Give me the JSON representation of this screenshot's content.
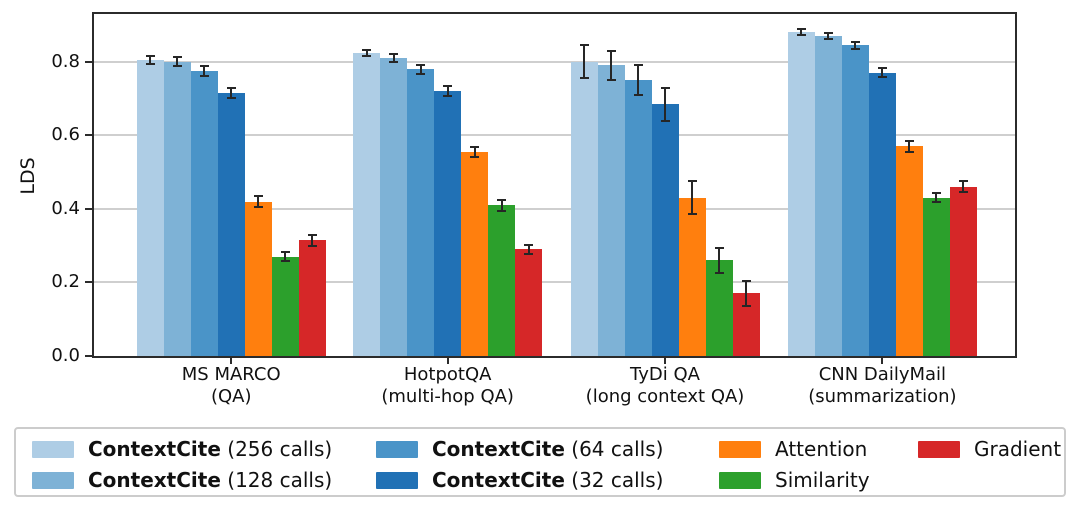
{
  "chart_data": {
    "type": "bar",
    "title": "",
    "ylabel": "LDS",
    "ylim": [
      0,
      0.93
    ],
    "yticks": [
      0.0,
      0.2,
      0.4,
      0.6,
      0.8
    ],
    "ytick_labels": [
      "0.0",
      "0.2",
      "0.4",
      "0.6",
      "0.8"
    ],
    "grid": "horizontal",
    "legend_position": "bottom",
    "categories": [
      {
        "line1": "MS MARCO",
        "line2": "(QA)"
      },
      {
        "line1": "HotpotQA",
        "line2": "(multi-hop QA)"
      },
      {
        "line1": "TyDi QA",
        "line2": "(long context QA)"
      },
      {
        "line1": "CNN DailyMail",
        "line2": "(summarization)"
      }
    ],
    "series": [
      {
        "name_bold": "ContextCite",
        "name_rest": " (256 calls)",
        "color": "#aecde5",
        "values": [
          0.805,
          0.825,
          0.8,
          0.88
        ],
        "errors": [
          0.012,
          0.008,
          0.045,
          0.008
        ]
      },
      {
        "name_bold": "ContextCite",
        "name_rest": " (128 calls)",
        "color": "#7eb2d6",
        "values": [
          0.8,
          0.81,
          0.79,
          0.87
        ],
        "errors": [
          0.012,
          0.01,
          0.04,
          0.008
        ]
      },
      {
        "name_bold": "ContextCite",
        "name_rest": " (64 calls)",
        "color": "#4a94c8",
        "values": [
          0.775,
          0.78,
          0.75,
          0.845
        ],
        "errors": [
          0.013,
          0.012,
          0.04,
          0.01
        ]
      },
      {
        "name_bold": "ContextCite",
        "name_rest": " (32 calls)",
        "color": "#2171b5",
        "values": [
          0.715,
          0.72,
          0.685,
          0.77
        ],
        "errors": [
          0.014,
          0.013,
          0.045,
          0.012
        ]
      },
      {
        "name_bold": "",
        "name_rest": "Attention",
        "color": "#ff7f0e",
        "values": [
          0.42,
          0.555,
          0.43,
          0.57
        ],
        "errors": [
          0.015,
          0.013,
          0.045,
          0.015
        ]
      },
      {
        "name_bold": "",
        "name_rest": "Similarity",
        "color": "#2ca02c",
        "values": [
          0.27,
          0.41,
          0.26,
          0.43
        ],
        "errors": [
          0.013,
          0.015,
          0.035,
          0.012
        ]
      },
      {
        "name_bold": "",
        "name_rest": "Gradient",
        "color": "#d62728",
        "values": [
          0.315,
          0.29,
          0.17,
          0.46
        ],
        "errors": [
          0.015,
          0.012,
          0.035,
          0.015
        ]
      }
    ],
    "legend_columns": [
      [
        0,
        1
      ],
      [
        2,
        3
      ],
      [
        4,
        5
      ],
      [
        6
      ]
    ]
  }
}
